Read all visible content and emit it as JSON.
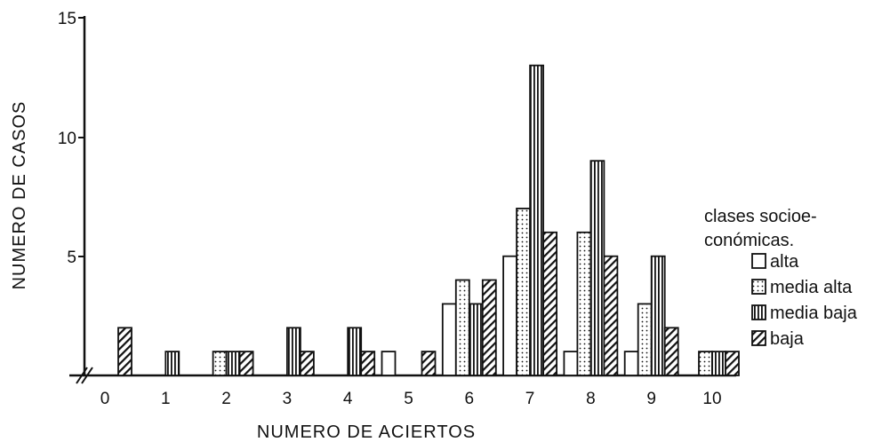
{
  "chart_data": {
    "type": "bar",
    "xlabel": "NUMERO DE ACIERTOS",
    "ylabel": "NUMERO DE CASOS",
    "ylim": [
      0,
      15
    ],
    "yticks": [
      "5",
      "10",
      "15"
    ],
    "categories": [
      "0",
      "1",
      "2",
      "3",
      "4",
      "5",
      "6",
      "7",
      "8",
      "9",
      "10"
    ],
    "series": [
      {
        "name": "alta",
        "pattern": "plain",
        "values": [
          0,
          0,
          0,
          0,
          0,
          1,
          3,
          5,
          1,
          1,
          0
        ]
      },
      {
        "name": "media alta",
        "pattern": "dotted",
        "values": [
          0,
          0,
          1,
          0,
          0,
          0,
          4,
          7,
          6,
          3,
          1
        ]
      },
      {
        "name": "media baja",
        "pattern": "vertical-lines",
        "values": [
          0,
          1,
          1,
          2,
          2,
          0,
          3,
          13,
          9,
          5,
          1
        ]
      },
      {
        "name": "baja",
        "pattern": "diagonal-lines",
        "values": [
          2,
          0,
          1,
          1,
          1,
          1,
          4,
          6,
          5,
          2,
          1
        ]
      }
    ],
    "legend": {
      "title_line1": "clases socioe-",
      "title_line2": "conómicas.",
      "position": "right"
    },
    "axis_break": true,
    "grid": false
  }
}
